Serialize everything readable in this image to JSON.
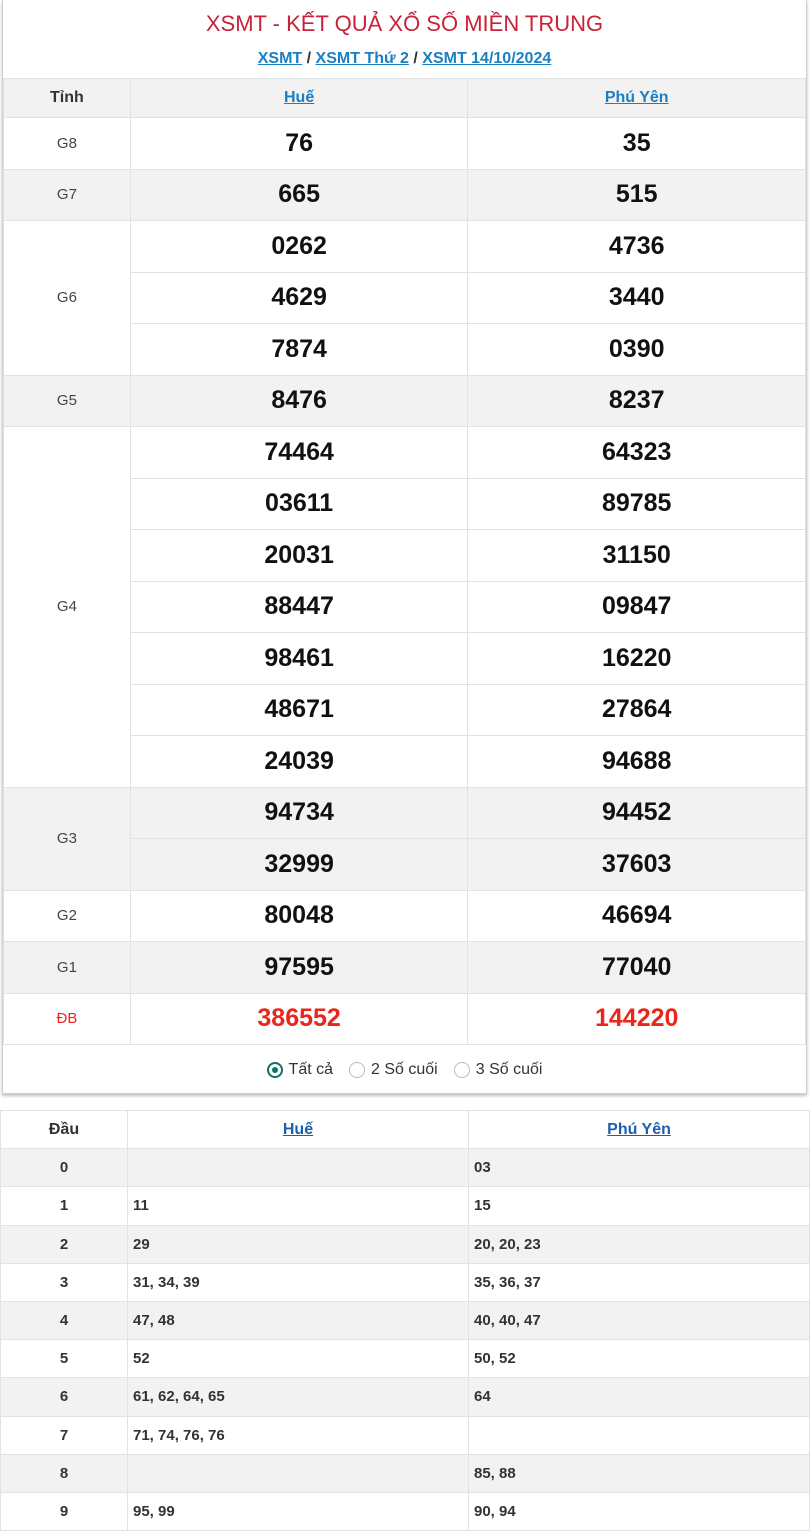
{
  "title": "XSMT - KẾT QUẢ XỔ SỐ MIỀN TRUNG",
  "breadcrumb": [
    "XSMT",
    "XSMT Thứ 2",
    "XSMT 14/10/2024"
  ],
  "results": {
    "header": {
      "col0": "Tỉnh",
      "provinces": [
        "Huế",
        "Phú Yên"
      ]
    },
    "prizes": [
      {
        "name": "G8",
        "hue": [
          "76"
        ],
        "phuyen": [
          "35"
        ]
      },
      {
        "name": "G7",
        "hue": [
          "665"
        ],
        "phuyen": [
          "515"
        ]
      },
      {
        "name": "G6",
        "hue": [
          "0262",
          "4629",
          "7874"
        ],
        "phuyen": [
          "4736",
          "3440",
          "0390"
        ]
      },
      {
        "name": "G5",
        "hue": [
          "8476"
        ],
        "phuyen": [
          "8237"
        ]
      },
      {
        "name": "G4",
        "hue": [
          "74464",
          "03611",
          "20031",
          "88447",
          "98461",
          "48671",
          "24039"
        ],
        "phuyen": [
          "64323",
          "89785",
          "31150",
          "09847",
          "16220",
          "27864",
          "94688"
        ]
      },
      {
        "name": "G3",
        "hue": [
          "94734",
          "32999"
        ],
        "phuyen": [
          "94452",
          "37603"
        ]
      },
      {
        "name": "G2",
        "hue": [
          "80048"
        ],
        "phuyen": [
          "46694"
        ]
      },
      {
        "name": "G1",
        "hue": [
          "97595"
        ],
        "phuyen": [
          "77040"
        ]
      },
      {
        "name": "ĐB",
        "hue": [
          "386552"
        ],
        "phuyen": [
          "144220"
        ]
      }
    ],
    "special_color": "#e8261c"
  },
  "filter": {
    "options": [
      "Tất cả",
      "2 Số cuối",
      "3 Số cuối"
    ],
    "selected": "Tất cả"
  },
  "loto": {
    "header": {
      "col0": "Đầu",
      "provinces": [
        "Huế",
        "Phú Yên"
      ]
    },
    "rows": [
      {
        "dau": "0",
        "hue": "",
        "phuyen": "03"
      },
      {
        "dau": "1",
        "hue": "11",
        "phuyen": "15"
      },
      {
        "dau": "2",
        "hue": "29",
        "phuyen": "20, 20, 23"
      },
      {
        "dau": "3",
        "hue": "31, 34, 39",
        "phuyen": "35, 36, 37"
      },
      {
        "dau": "4",
        "hue": "47, 48",
        "phuyen": "40, 40, 47"
      },
      {
        "dau": "5",
        "hue": "52",
        "phuyen": "50, 52"
      },
      {
        "dau": "6",
        "hue": "61, 62, 64, 65",
        "phuyen": "64"
      },
      {
        "dau": "7",
        "hue": "71, 74, 76, 76",
        "phuyen": ""
      },
      {
        "dau": "8",
        "hue": "",
        "phuyen": "85, 88"
      },
      {
        "dau": "9",
        "hue": "95, 99",
        "phuyen": "90, 94"
      }
    ]
  }
}
